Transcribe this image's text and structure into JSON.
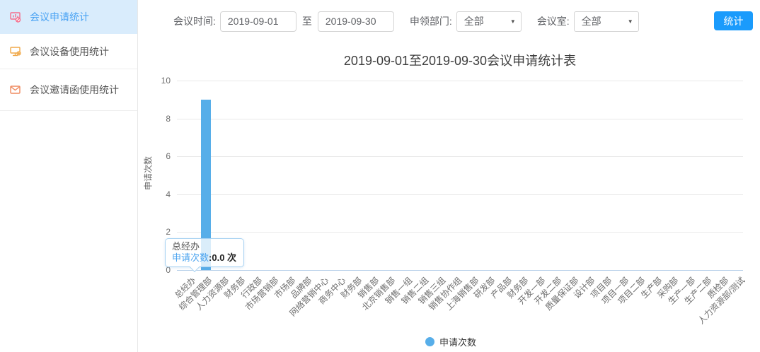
{
  "sidebar": {
    "items": [
      {
        "label": "会议申请统计",
        "active": true
      },
      {
        "label": "会议设备使用统计",
        "active": false
      },
      {
        "label": "会议邀请函使用统计",
        "active": false
      }
    ]
  },
  "toolbar": {
    "meeting_time_label": "会议时间:",
    "date_from": "2019-09-01",
    "to_label": "至",
    "date_to": "2019-09-30",
    "department_label": "申领部门:",
    "department_value": "全部",
    "room_label": "会议室:",
    "room_value": "全部",
    "submit_label": "统计"
  },
  "chart_data": {
    "type": "bar",
    "title": "2019-09-01至2019-09-30会议申请统计表",
    "xlabel": "",
    "ylabel": "申请次数",
    "ylim": [
      0,
      10
    ],
    "yticks": [
      0,
      2,
      4,
      6,
      8,
      10
    ],
    "grid": true,
    "legend": [
      "申请次数"
    ],
    "legend_position": "bottom",
    "bar_color": "#57aee9",
    "categories": [
      "总经办",
      "综合管理部",
      "人力资源部",
      "财务部",
      "行政部",
      "市场营销部",
      "市场部",
      "品牌部",
      "网络营销中心",
      "商务中心",
      "财务部",
      "销售部",
      "北京销售部",
      "销售一组",
      "销售二组",
      "销售三组",
      "销售协作组",
      "上海销售部",
      "研发部",
      "产品部",
      "财务部",
      "开发一部",
      "开发二部",
      "质量保证部",
      "设计部",
      "项目部",
      "项目一部",
      "项目二部",
      "生产部",
      "采购部",
      "生产一部",
      "生产二部",
      "质检部",
      "人力资源部/测试"
    ],
    "series": [
      {
        "name": "申请次数",
        "values": [
          0,
          9,
          0,
          0,
          0,
          0,
          0,
          0,
          0,
          0,
          0,
          0,
          0,
          0,
          0,
          0,
          0,
          0,
          0,
          0,
          0,
          0,
          0,
          0,
          0,
          0,
          0,
          0,
          0,
          0,
          0,
          0,
          0,
          0
        ]
      }
    ]
  },
  "tooltip": {
    "category": "总经办",
    "series": "申请次数",
    "separator": ":",
    "value": "0.0 次"
  },
  "colors": {
    "accent_button": "#1a9bfc",
    "bar": "#57aee9",
    "sidebar_active_bg": "#d9ecfc",
    "sidebar_active_text": "#48a2f3",
    "tooltip_border": "#a9d3f2",
    "axis_line": "#b5cfe9"
  }
}
